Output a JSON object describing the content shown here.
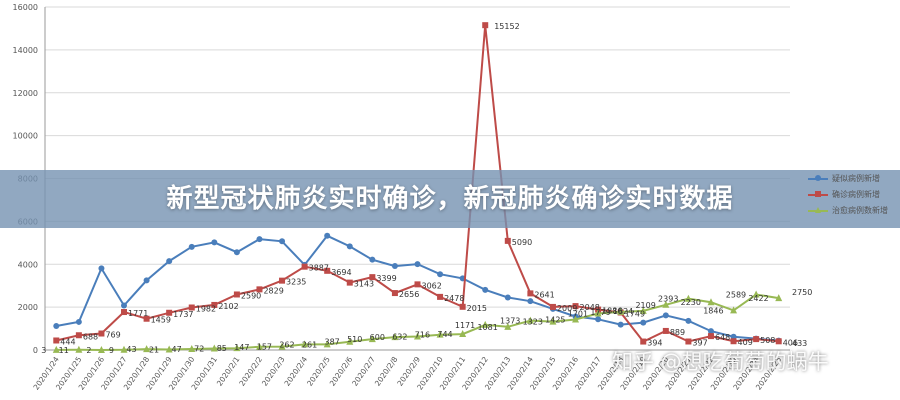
{
  "chart_data": {
    "type": "line",
    "categories": [
      "2020/1/24",
      "2020/1/25",
      "2020/1/26",
      "2020/1/27",
      "2020/1/28",
      "2020/1/29",
      "2020/1/30",
      "2020/1/31",
      "2020/2/1",
      "2020/2/2",
      "2020/2/3",
      "2020/2/4",
      "2020/2/5",
      "2020/2/6",
      "2020/2/7",
      "2020/2/8",
      "2020/2/9",
      "2020/2/10",
      "2020/2/11",
      "2020/2/12",
      "2020/2/13",
      "2020/2/14",
      "2020/2/15",
      "2020/2/16",
      "2020/2/17",
      "2020/2/18",
      "2020/2/19",
      "2020/2/20",
      "2020/2/21",
      "2020/2/22",
      "2020/2/23",
      "2020/2/24",
      "2020/2/25"
    ],
    "ylim": [
      0,
      16000
    ],
    "yticks": [
      0,
      2000,
      4000,
      6000,
      8000,
      10000,
      12000,
      14000,
      16000
    ],
    "grid": true,
    "legend": "right",
    "series": [
      {
        "name": "疑似病例新增",
        "color": "#4a7ebb",
        "marker": "circle",
        "values": [
          1118,
          1309,
          3806,
          2077,
          3248,
          4148,
          4812,
          5019,
          4562,
          5173,
          5072,
          3971,
          5328,
          4833,
          4214,
          3916,
          4008,
          3536,
          3342,
          2807,
          2450,
          2277,
          1918,
          1563,
          1432,
          1185,
          1277,
          1614,
          1361,
          882,
          620,
          530,
          439
        ],
        "labels": [
          "",
          "",
          "",
          "",
          "",
          "",
          "",
          "",
          "",
          "",
          "",
          "",
          "",
          "",
          "",
          "",
          "",
          "",
          "",
          "",
          "",
          "",
          "",
          "",
          "",
          "",
          "",
          "",
          "",
          "",
          "",
          "",
          ""
        ]
      },
      {
        "name": "确诊病例新增",
        "color": "#be4b48",
        "marker": "square",
        "values": [
          444,
          688,
          769,
          1771,
          1459,
          1737,
          1982,
          2102,
          2590,
          2829,
          3235,
          3887,
          3694,
          3143,
          3399,
          2656,
          3062,
          2478,
          2015,
          15152,
          5090,
          2641,
          2009,
          2048,
          1886,
          1749,
          394,
          889,
          397,
          648,
          409,
          508,
          406
        ],
        "labels": [
          "444",
          "688",
          "769",
          "1771",
          "1459",
          "1737",
          "1982",
          "2102",
          "2590",
          "2829",
          "3235",
          "3887",
          "3694",
          "3143",
          "3399",
          "2656",
          "3062",
          "2478",
          "2015",
          "15152",
          "5090",
          "2641",
          "2009",
          "2048",
          "1886",
          "1749",
          "394",
          "889",
          "397",
          "648",
          "409",
          "508",
          "406"
        ]
      },
      {
        "name": "治愈病例数新增",
        "color": "#98b954",
        "marker": "triangle",
        "values": [
          3,
          11,
          2,
          9,
          43,
          21,
          47,
          72,
          85,
          147,
          157,
          262,
          261,
          387,
          510,
          600,
          632,
          716,
          744,
          1171,
          1081,
          1373,
          1323,
          1425,
          1701,
          1779,
          1824,
          2109,
          2393,
          2230,
          1846,
          2589,
          2422
        ],
        "labels": [
          "3",
          "11",
          "2",
          "9",
          "43",
          "21",
          "47",
          "72",
          "85",
          "147",
          "157",
          "262",
          "261",
          "387",
          "510",
          "600",
          "632",
          "716",
          "744",
          "1171",
          "1081",
          "1373",
          "1323",
          "1425",
          "1701",
          "1779",
          "1824",
          "2109",
          "2393",
          "2230",
          "1846",
          "2589",
          "2422"
        ]
      }
    ],
    "extra_labels": [
      "433",
      "2750"
    ]
  },
  "banner": {
    "title": "新型冠状肺炎实时确诊，新冠肺炎确诊实时数据"
  },
  "watermark": {
    "text": "知乎 @想吃葡萄的蜗牛"
  }
}
